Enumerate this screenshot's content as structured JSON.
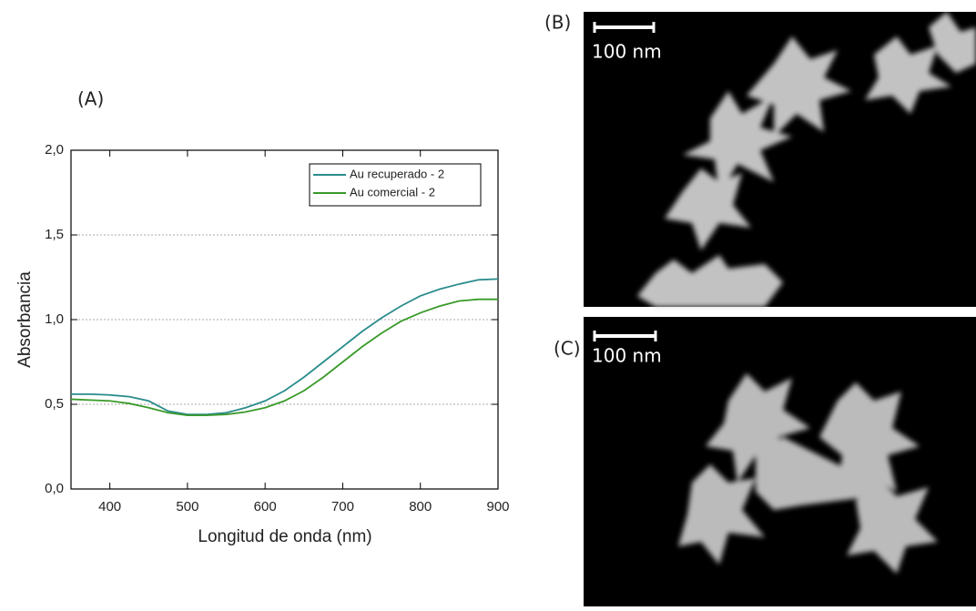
{
  "chart_data": {
    "type": "line",
    "x_label": "Longitud de onda (nm)",
    "y_label": "Absorbancia",
    "x": [
      350,
      375,
      400,
      425,
      450,
      475,
      500,
      525,
      550,
      575,
      600,
      625,
      650,
      675,
      700,
      725,
      750,
      775,
      800,
      825,
      850,
      875,
      900
    ],
    "series": [
      {
        "name": "Au recuperado - 2",
        "color": "#2b8c8c",
        "values": [
          0.56,
          0.56,
          0.555,
          0.545,
          0.52,
          0.46,
          0.44,
          0.44,
          0.45,
          0.48,
          0.52,
          0.58,
          0.66,
          0.75,
          0.84,
          0.93,
          1.01,
          1.08,
          1.14,
          1.18,
          1.21,
          1.235,
          1.24
        ]
      },
      {
        "name": "Au comercial - 2",
        "color": "#3a9a2a",
        "values": [
          0.53,
          0.525,
          0.52,
          0.505,
          0.48,
          0.45,
          0.435,
          0.435,
          0.44,
          0.455,
          0.48,
          0.52,
          0.58,
          0.66,
          0.75,
          0.84,
          0.92,
          0.99,
          1.04,
          1.08,
          1.11,
          1.12,
          1.12
        ]
      }
    ],
    "xlim": [
      350,
      900
    ],
    "xticks": [
      400,
      500,
      600,
      700,
      800,
      900
    ],
    "ylim": [
      0,
      2
    ],
    "yticks": [
      {
        "value": 0,
        "label": "0,0"
      },
      {
        "value": 0.5,
        "label": "0,5"
      },
      {
        "value": 1,
        "label": "1,0"
      },
      {
        "value": 1.5,
        "label": "1,5"
      },
      {
        "value": 2,
        "label": "2,0"
      }
    ],
    "grid": true,
    "legend": "upper right"
  },
  "panel_labels": [
    "(A)",
    "(B)",
    "(C)"
  ],
  "scale_bars": [
    "100 nm",
    "100 nm"
  ]
}
